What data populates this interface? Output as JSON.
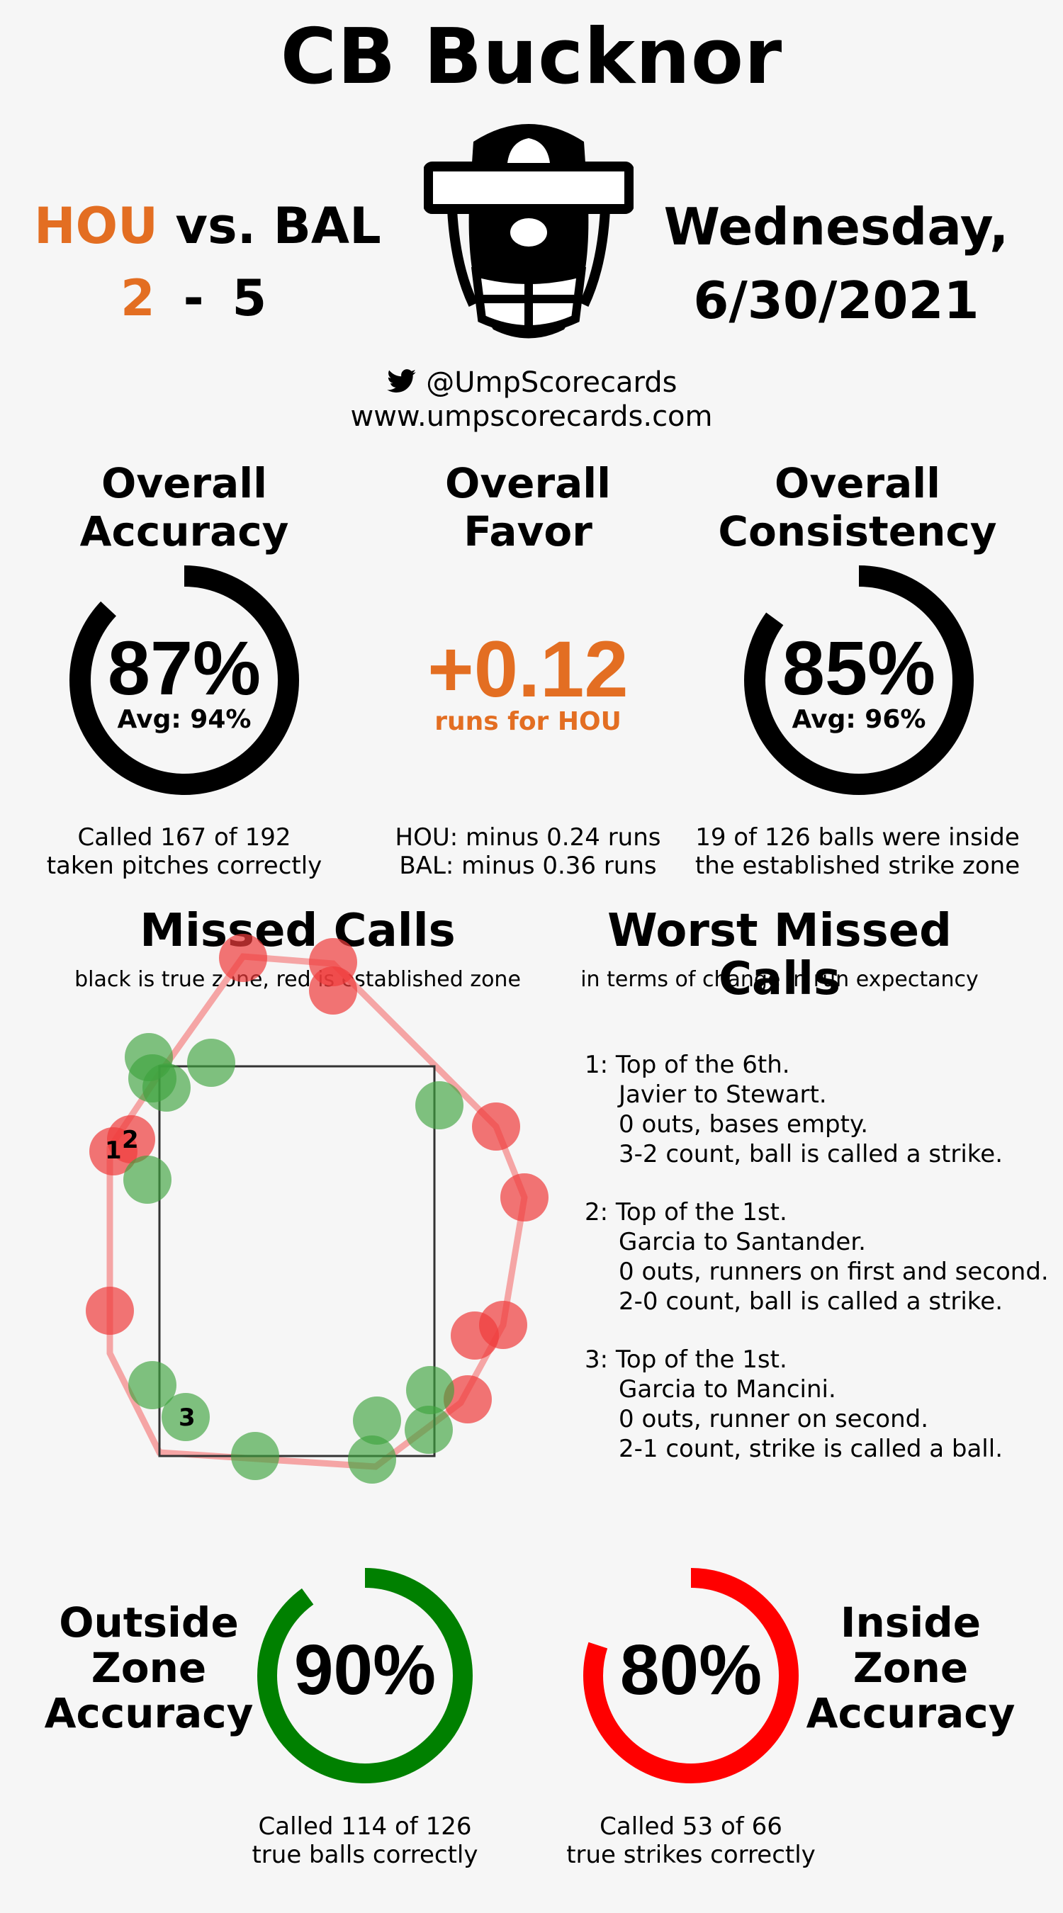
{
  "umpire": "CB Bucknor",
  "matchup": {
    "home_abbr": "HOU",
    "vs_text": "vs. BAL",
    "home_score": "2",
    "dash": "-",
    "away_score": "5"
  },
  "date": {
    "weekday": "Wednesday,",
    "date": "6/30/2021"
  },
  "social": {
    "handle": "@UmpScorecards",
    "site": "www.umpscorecards.com"
  },
  "overall_accuracy": {
    "title_line1": "Overall",
    "title_line2": "Accuracy",
    "value": "87%",
    "fraction": 0.87,
    "avg": "Avg: 94%",
    "note_line1": "Called 167 of 192",
    "note_line2": "taken pitches correctly"
  },
  "overall_favor": {
    "title_line1": "Overall",
    "title_line2": "Favor",
    "value": "+0.12",
    "sub": "runs for HOU",
    "note_line1": "HOU: minus 0.24 runs",
    "note_line2": "BAL: minus 0.36 runs"
  },
  "overall_consistency": {
    "title_line1": "Overall",
    "title_line2": "Consistency",
    "value": "85%",
    "fraction": 0.85,
    "avg": "Avg: 96%",
    "note_line1": "19 of 126 balls were inside",
    "note_line2": "the established strike zone"
  },
  "missed_calls": {
    "title": "Missed Calls",
    "subtitle": "black is true zone, red is established zone",
    "labels": [
      "1",
      "2",
      "3"
    ]
  },
  "worst_missed": {
    "title": "Worst Missed Calls",
    "subtitle": "in terms of change in run expectancy",
    "calls": [
      {
        "num": "1:",
        "lines": [
          "Top of the 6th.",
          "Javier to Stewart.",
          "0 outs, bases empty.",
          "3-2 count, ball is called a strike."
        ]
      },
      {
        "num": "2:",
        "lines": [
          "Top of the 1st.",
          "Garcia to Santander.",
          "0 outs, runners on first and second.",
          "2-0 count, ball is called a strike."
        ]
      },
      {
        "num": "3:",
        "lines": [
          "Top of the 1st.",
          "Garcia to Mancini.",
          "0 outs, runner on second.",
          "2-1 count, strike is called a ball."
        ]
      }
    ]
  },
  "outside_zone": {
    "title_line1": "Outside",
    "title_line2": "Zone",
    "title_line3": "Accuracy",
    "value": "90%",
    "fraction": 0.9,
    "color": "#008000",
    "note_line1": "Called 114 of 126",
    "note_line2": "true balls correctly"
  },
  "inside_zone": {
    "title_line1": "Inside",
    "title_line2": "Zone",
    "title_line3": "Accuracy",
    "value": "80%",
    "fraction": 0.8,
    "color": "#ff0000",
    "note_line1": "Called 53 of 66",
    "note_line2": "true strikes correctly"
  }
}
